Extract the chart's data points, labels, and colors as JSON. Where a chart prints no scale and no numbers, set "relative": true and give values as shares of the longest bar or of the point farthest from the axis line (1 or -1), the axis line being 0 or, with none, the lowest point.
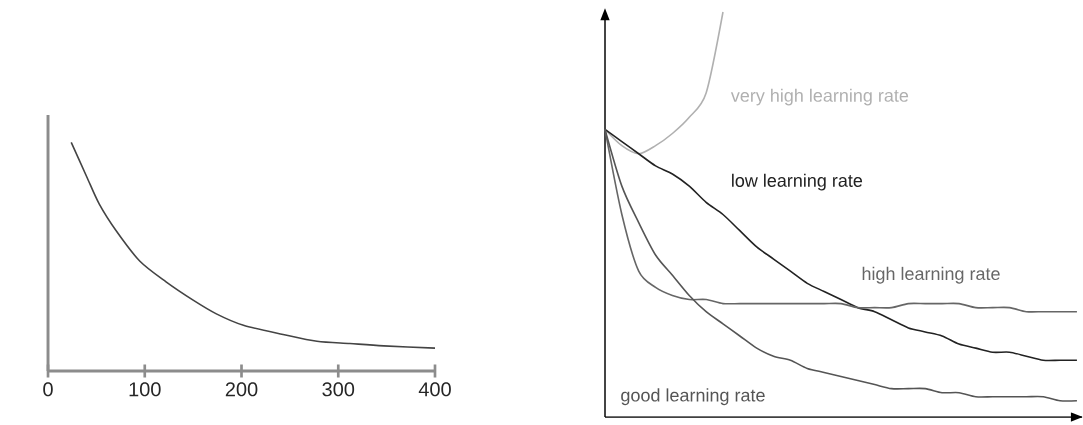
{
  "chart_data": [
    {
      "type": "line",
      "relative": true,
      "color": "#444444",
      "x": [
        24,
        40,
        53,
        71,
        95,
        122,
        150,
        174,
        202,
        243,
        278,
        312,
        347,
        400
      ],
      "values": [
        1,
        0.85,
        0.73,
        0.61,
        0.48,
        0.39,
        0.31,
        0.25,
        0.2,
        0.16,
        0.13,
        0.12,
        0.11,
        0.1
      ],
      "xlim": [
        0,
        400
      ],
      "xticks": [
        0,
        100,
        200,
        300,
        400
      ]
    },
    {
      "type": "line",
      "relative": true,
      "categories": [
        null,
        null,
        null,
        null,
        null,
        null,
        null,
        null,
        null,
        null,
        null,
        null,
        null,
        null,
        null,
        null,
        null,
        null,
        null,
        null,
        null,
        null,
        null,
        null,
        null,
        null,
        null,
        null,
        null
      ],
      "series": [
        {
          "name": "very high learning rate",
          "color": "#b0b0b0",
          "values": [
            0.71,
            0.67,
            0.65,
            0.67,
            0.7,
            0.74,
            0.8,
            1,
            null,
            null,
            null,
            null,
            null,
            null,
            null,
            null,
            null,
            null,
            null,
            null,
            null,
            null,
            null,
            null,
            null,
            null,
            null,
            null,
            null
          ]
        },
        {
          "name": "low learning rate",
          "color": "#222222",
          "values": [
            0.71,
            0.68,
            0.65,
            0.62,
            0.6,
            0.57,
            0.53,
            0.5,
            0.46,
            0.42,
            0.39,
            0.36,
            0.33,
            0.31,
            0.29,
            0.27,
            0.26,
            0.24,
            0.22,
            0.21,
            0.2,
            0.18,
            0.17,
            0.16,
            0.16,
            0.15,
            0.14,
            0.14,
            0.14
          ]
        },
        {
          "name": "high learning rate",
          "color": "#666666",
          "values": [
            0.71,
            0.5,
            0.36,
            0.32,
            0.3,
            0.29,
            0.29,
            0.28,
            0.28,
            0.28,
            0.28,
            0.28,
            0.28,
            0.28,
            0.28,
            0.27,
            0.27,
            0.27,
            0.28,
            0.28,
            0.28,
            0.28,
            0.27,
            0.27,
            0.27,
            0.26,
            0.26,
            0.26,
            0.26
          ]
        },
        {
          "name": "good learning rate",
          "color": "#555555",
          "values": [
            0.71,
            0.57,
            0.48,
            0.4,
            0.35,
            0.3,
            0.26,
            0.23,
            0.2,
            0.17,
            0.15,
            0.14,
            0.12,
            0.11,
            0.1,
            0.09,
            0.08,
            0.07,
            0.07,
            0.07,
            0.06,
            0.06,
            0.05,
            0.05,
            0.05,
            0.05,
            0.05,
            0.04,
            0.04
          ]
        }
      ]
    }
  ]
}
